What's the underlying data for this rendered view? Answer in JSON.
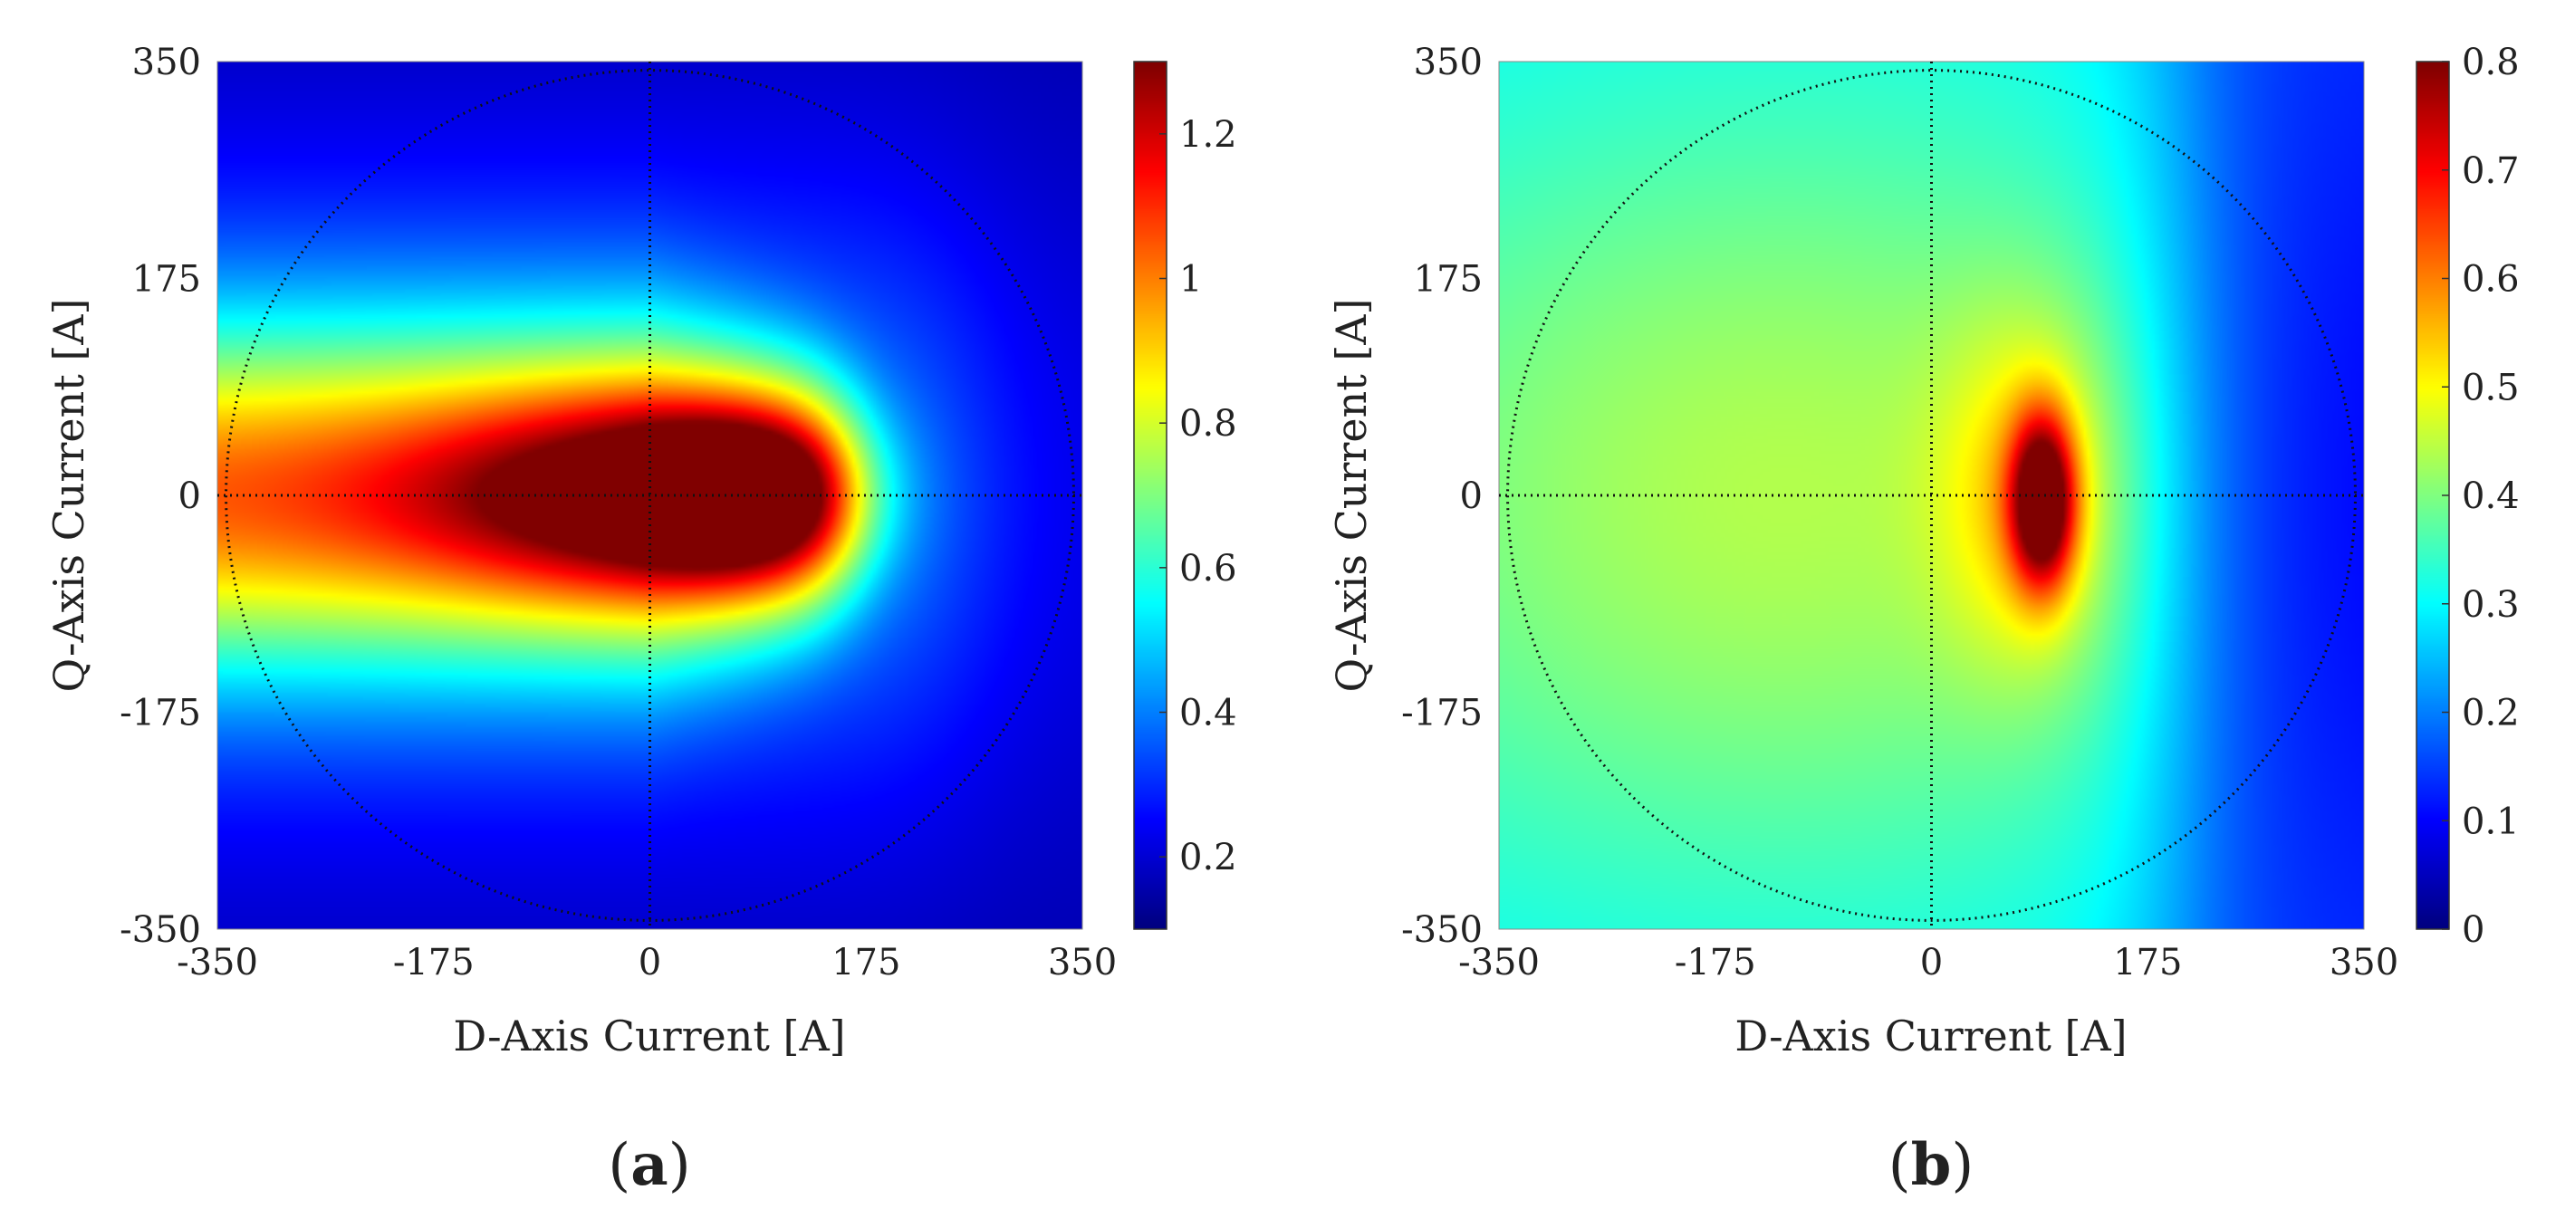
{
  "chart_data": [
    {
      "type": "heatmap",
      "panel_label": "a",
      "xlabel": "D-Axis Current [A]",
      "ylabel": "Q-Axis Current [A]",
      "xlim": [
        -350,
        350
      ],
      "ylim": [
        -350,
        350
      ],
      "xticks": [
        "-350",
        "-175",
        "0",
        "175",
        "350"
      ],
      "yticks": [
        "350",
        "175",
        "0",
        "-175",
        "-350"
      ],
      "colorbar": {
        "range": [
          0.1,
          1.3
        ],
        "ticks": [
          "0.2",
          "0.4",
          "0.6",
          "0.8",
          "1",
          "1.2"
        ],
        "tick_values": [
          0.2,
          0.4,
          0.6,
          0.8,
          1.0,
          1.2
        ],
        "colormap": "jet"
      },
      "circle_radius": 343,
      "field": {
        "background": 0.13,
        "peak": 1.3,
        "peak_at": [
          60,
          0
        ],
        "description": "high values concentrated along the d-axis from about -350 A to 175 A, peak near d = 60 A, q = 0"
      }
    },
    {
      "type": "heatmap",
      "panel_label": "b",
      "xlabel": "D-Axis Current [A]",
      "ylabel": "Q-Axis Current [A]",
      "xlim": [
        -350,
        350
      ],
      "ylim": [
        -350,
        350
      ],
      "xticks": [
        "-350",
        "-175",
        "0",
        "175",
        "350"
      ],
      "yticks": [
        "350",
        "175",
        "0",
        "-175",
        "-350"
      ],
      "colorbar": {
        "range": [
          0,
          0.8
        ],
        "ticks": [
          "0",
          "0.1",
          "0.2",
          "0.3",
          "0.4",
          "0.5",
          "0.6",
          "0.7",
          "0.8"
        ],
        "tick_values": [
          0,
          0.1,
          0.2,
          0.3,
          0.4,
          0.5,
          0.6,
          0.7,
          0.8
        ],
        "colormap": "jet"
      },
      "circle_radius": 343,
      "field": {
        "background": 0.3,
        "peak": 0.8,
        "peak_at": [
          90,
          -5
        ],
        "description": "moderate values ~0.4 on the negative d side, sharp peak near d = 90 A, q = 0, low values ~0.05 toward d = 350 A"
      }
    }
  ]
}
